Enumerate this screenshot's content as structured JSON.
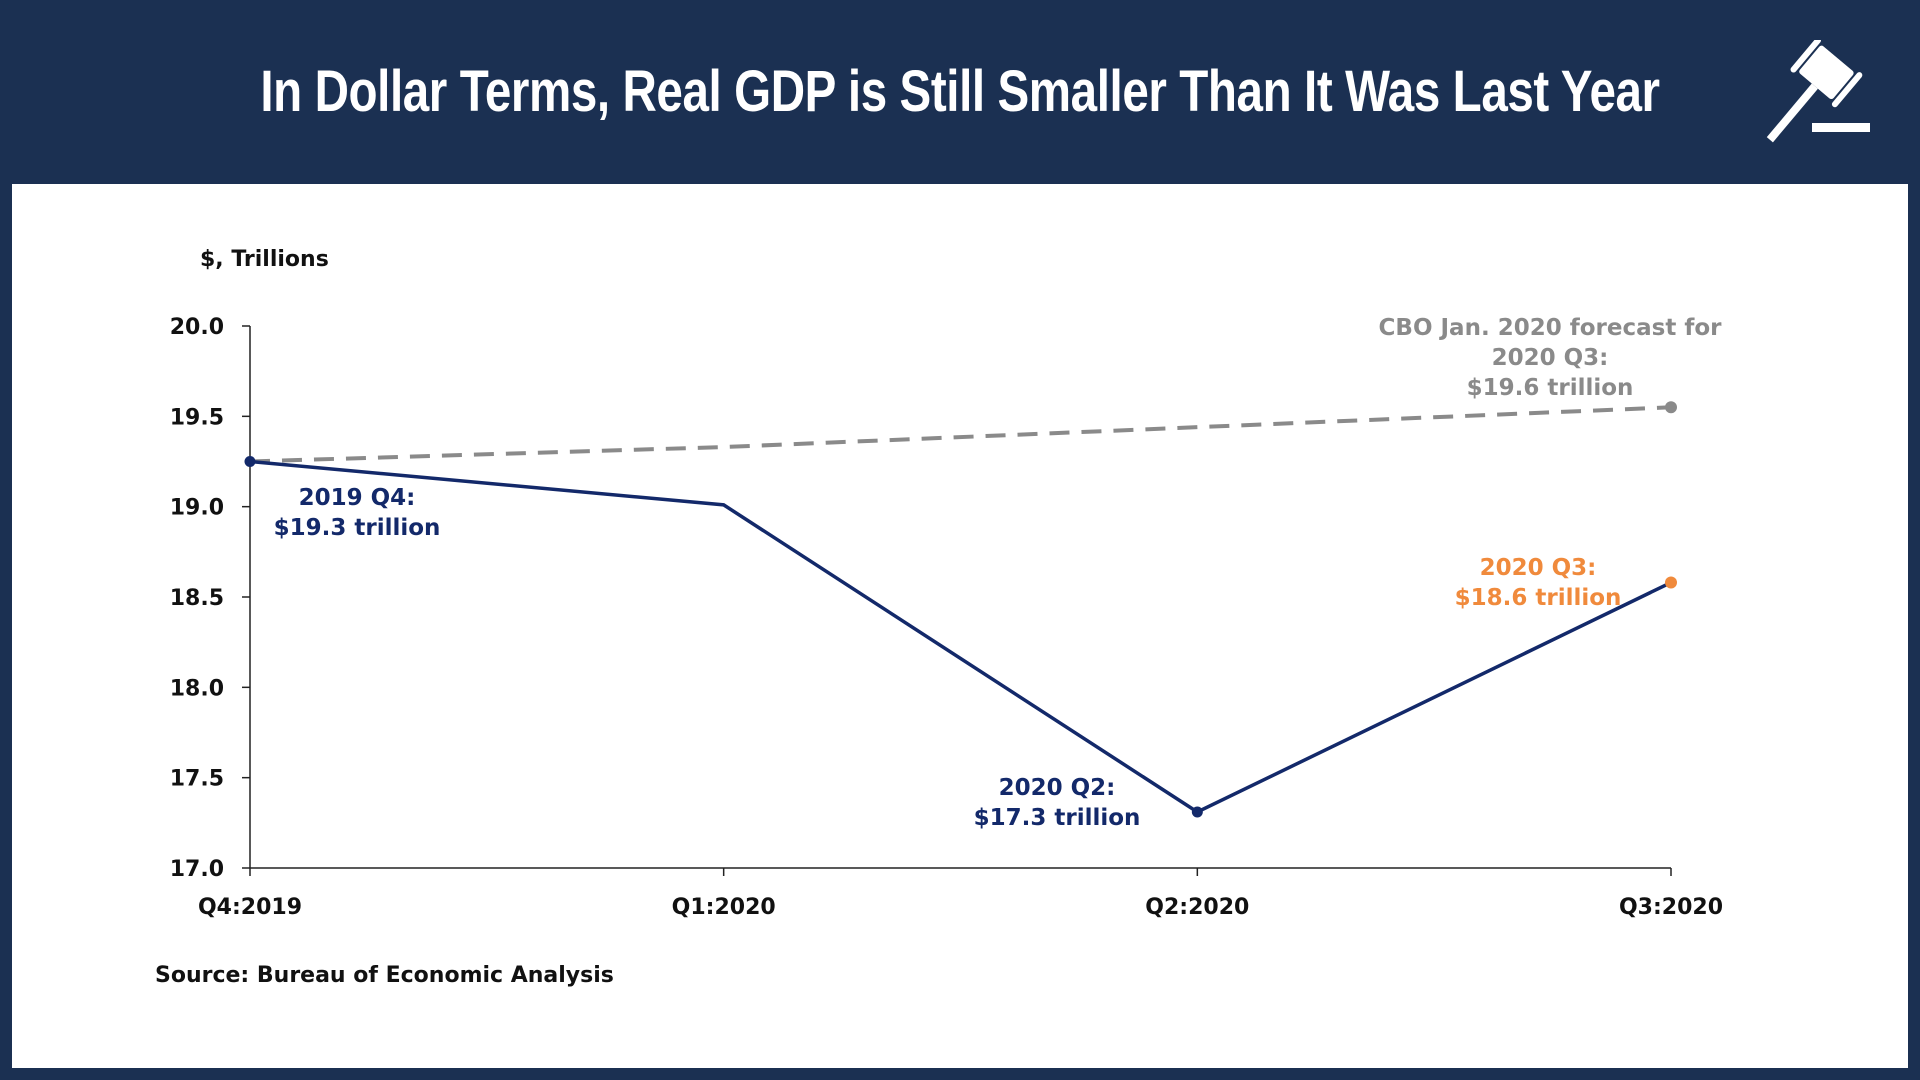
{
  "header": {
    "title": "In Dollar Terms, Real GDP is Still Smaller Than It Was Last Year",
    "icon": "gavel-icon"
  },
  "colors": {
    "header_bg": "#1b3052",
    "actual": "#13296a",
    "forecast": "#8a8a8a",
    "highlight": "#f08a3c"
  },
  "chart_data": {
    "type": "line",
    "title": "In Dollar Terms, Real GDP is Still Smaller Than It Was Last Year",
    "ylabel": "$, Trillions",
    "xlabel": "",
    "categories": [
      "Q4:2019",
      "Q1:2020",
      "Q2:2020",
      "Q3:2020"
    ],
    "ylim": [
      17.0,
      20.0
    ],
    "yticks": [
      "17.0",
      "17.5",
      "18.0",
      "18.5",
      "19.0",
      "19.5",
      "20.0"
    ],
    "grid": false,
    "series": [
      {
        "name": "Real GDP",
        "style": "solid",
        "values": [
          19.25,
          19.01,
          17.31,
          18.58
        ]
      },
      {
        "name": "CBO Jan. 2020 forecast",
        "style": "dashed",
        "values": [
          19.25,
          19.33,
          19.44,
          19.55
        ]
      }
    ],
    "annotations": [
      {
        "lines": [
          "2019 Q4:",
          "$19.3 trillion"
        ],
        "color": "actual"
      },
      {
        "lines": [
          "2020 Q2:",
          "$17.3 trillion"
        ],
        "color": "actual"
      },
      {
        "lines": [
          "2020 Q3:",
          "$18.6 trillion"
        ],
        "color": "highlight"
      },
      {
        "lines": [
          "CBO Jan. 2020 forecast for",
          "2020 Q3:",
          "$19.6 trillion"
        ],
        "color": "forecast"
      }
    ],
    "source": "Source: Bureau of Economic Analysis"
  }
}
